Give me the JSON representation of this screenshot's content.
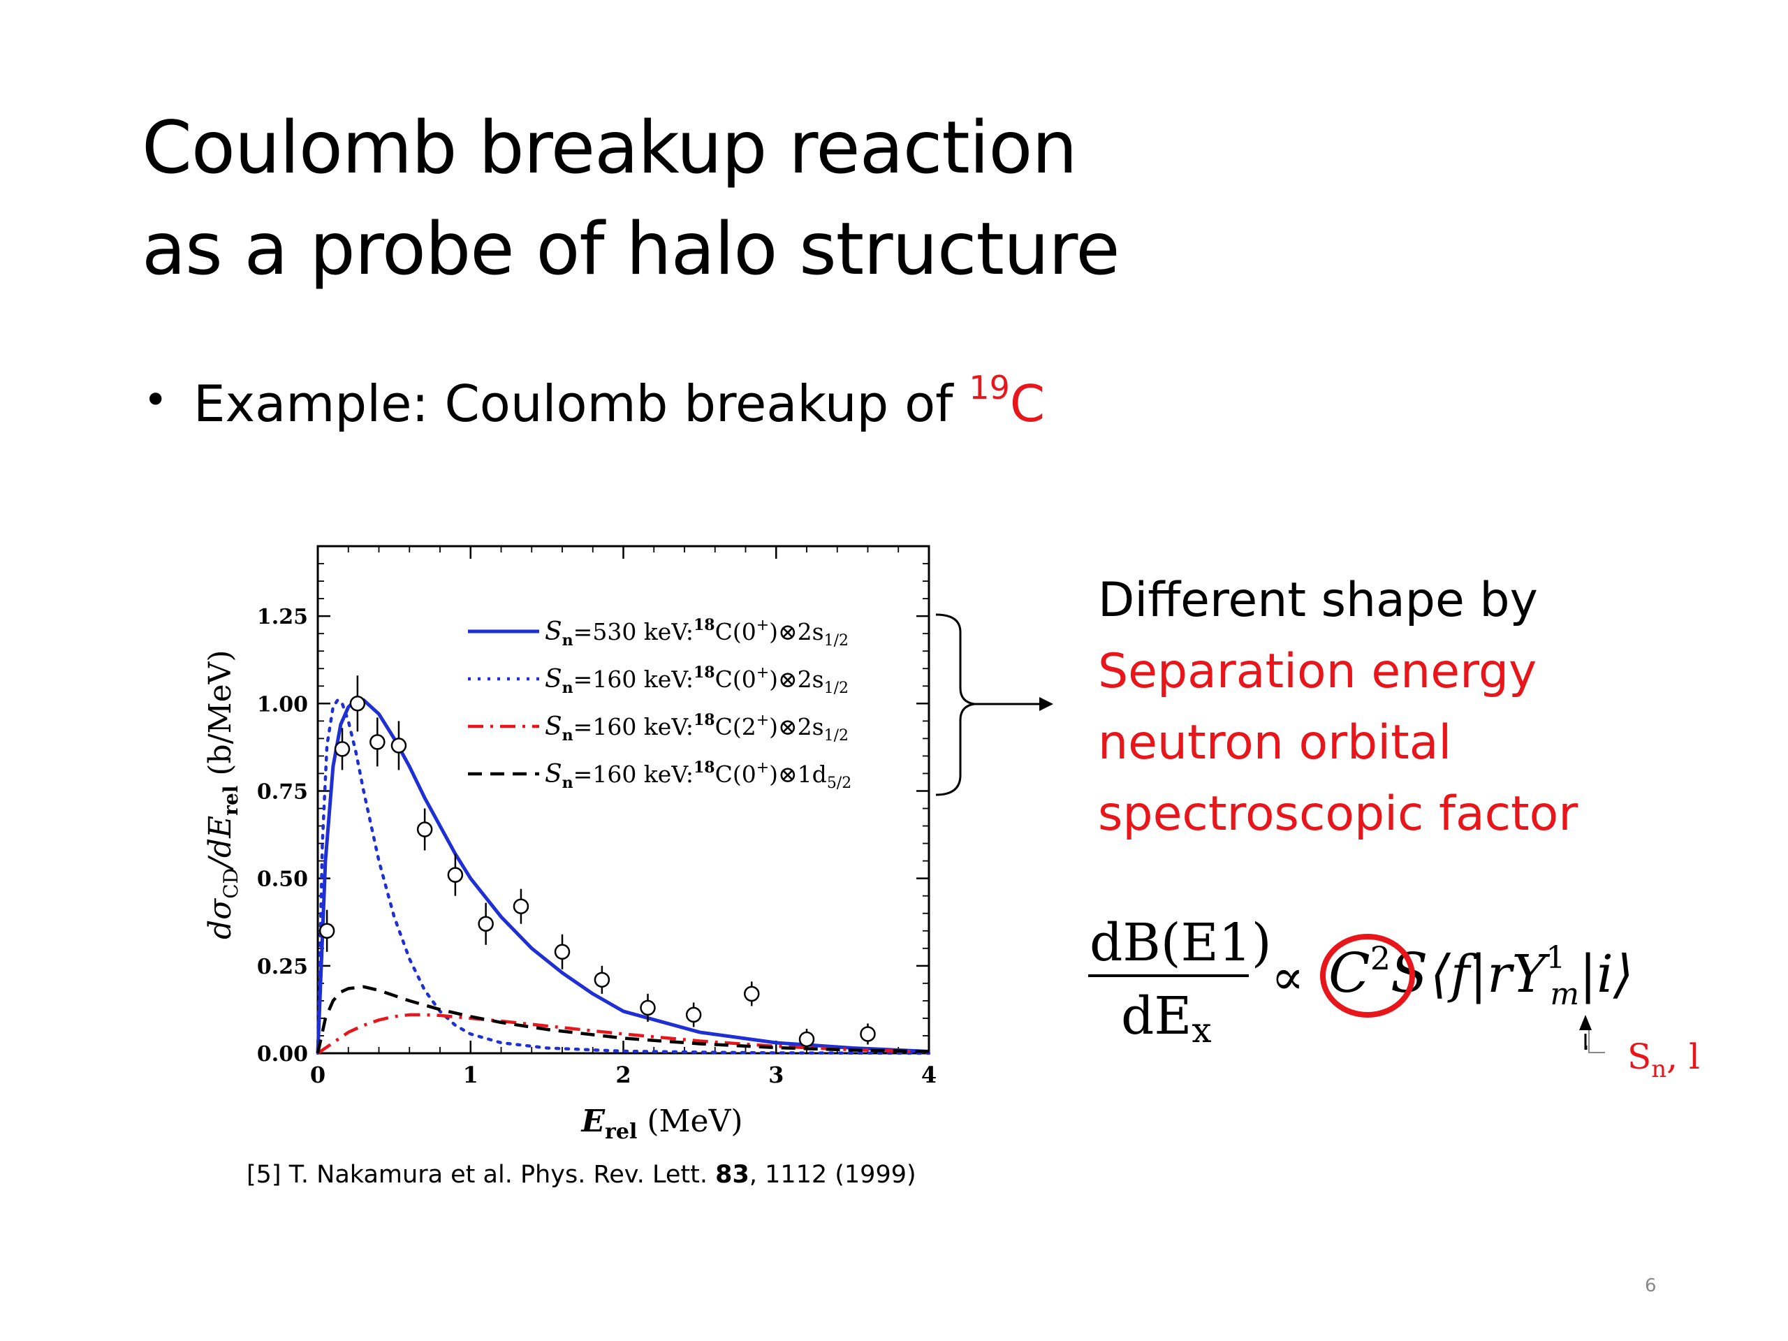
{
  "slide": {
    "title_line1": "Coulomb breakup reaction",
    "title_line2": "as a probe of halo structure",
    "bullet_prefix": "Example: Coulomb breakup of ",
    "bullet_isotope_mass": "19",
    "bullet_isotope_symbol": "C",
    "note_line1": "Different shape by",
    "note_line2": "Separation energy",
    "note_line3": "neutron orbital",
    "note_line4": "spectroscopic factor",
    "citation_prefix": "[5] T. Nakamura et al. Phys. Rev. Lett. ",
    "citation_volume": "83",
    "citation_suffix": ", 1112 (1999)",
    "page_number": "6",
    "equation": {
      "numerator": "dB(E1)",
      "denominator": "dE",
      "denominator_sub": "x",
      "proportional": "∝",
      "factor": "C",
      "factor_sup": "2",
      "factor_s": "S",
      "matrix_element": "⟨f|rY",
      "matrix_sup": "1",
      "matrix_sub": "m",
      "matrix_end": "|i⟩",
      "arrow_label_s": "S",
      "arrow_label_sub": "n",
      "arrow_label_rest": ", l"
    },
    "colors": {
      "accent_red": "#e8161b",
      "series_blue": "#1f2fd6",
      "series_red": "#e8161b",
      "series_black": "#000000"
    }
  },
  "chart_data": {
    "type": "line",
    "xlabel": "E",
    "xlabel_sub": "rel",
    "xlabel_unit": "(MeV)",
    "ylabel": "dσ",
    "ylabel_sub1": "CD",
    "ylabel_mid": "/dE",
    "ylabel_sub2": "rel",
    "ylabel_unit": "(b/MeV)",
    "xlim": [
      0,
      4
    ],
    "ylim": [
      0,
      1.45
    ],
    "xticks": [
      "0",
      "1",
      "2",
      "3",
      "4"
    ],
    "yticks": [
      "0.00",
      "0.25",
      "0.50",
      "0.75",
      "1.00",
      "1.25"
    ],
    "legend_position": "top-right",
    "series": [
      {
        "name": "S_n=530 keV: 18C(0+)⊗2s1/2",
        "label_s": "S",
        "label_n": "n",
        "label_e": "=530 keV:",
        "label_mass": "18",
        "label_core": "C(0",
        "label_cp": "+",
        "label_orb": ")⊗2s",
        "label_sub": "1/2",
        "style": "solid",
        "color": "#1f2fd6",
        "x": [
          0,
          0.05,
          0.1,
          0.15,
          0.2,
          0.25,
          0.3,
          0.4,
          0.5,
          0.6,
          0.7,
          0.8,
          0.9,
          1.0,
          1.2,
          1.4,
          1.6,
          1.8,
          2.0,
          2.5,
          3.0,
          3.5,
          4.0
        ],
        "y": [
          0,
          0.55,
          0.82,
          0.94,
          0.99,
          1.01,
          1.01,
          0.97,
          0.9,
          0.82,
          0.73,
          0.65,
          0.57,
          0.5,
          0.39,
          0.3,
          0.23,
          0.17,
          0.12,
          0.06,
          0.03,
          0.015,
          0.005
        ]
      },
      {
        "name": "S_n=160 keV: 18C(0+)⊗2s1/2",
        "label_s": "S",
        "label_n": "n",
        "label_e": "=160 keV:",
        "label_mass": "18",
        "label_core": "C(0",
        "label_cp": "+",
        "label_orb": ")⊗2s",
        "label_sub": "1/2",
        "style": "dotted",
        "color": "#1f2fd6",
        "x": [
          0,
          0.03,
          0.06,
          0.1,
          0.13,
          0.16,
          0.2,
          0.25,
          0.3,
          0.4,
          0.5,
          0.6,
          0.7,
          0.8,
          0.9,
          1.0,
          1.2,
          1.5,
          2.0,
          2.5,
          3.0,
          4.0
        ],
        "y": [
          0,
          0.6,
          0.88,
          0.99,
          1.01,
          1.0,
          0.95,
          0.86,
          0.75,
          0.55,
          0.39,
          0.27,
          0.18,
          0.12,
          0.08,
          0.055,
          0.03,
          0.015,
          0.006,
          0.003,
          0.001,
          0
        ]
      },
      {
        "name": "S_n=160 keV: 18C(2+)⊗2s1/2",
        "label_s": "S",
        "label_n": "n",
        "label_e": "=160 keV:",
        "label_mass": "18",
        "label_core": "C(2",
        "label_cp": "+",
        "label_orb": ")⊗2s",
        "label_sub": "1/2",
        "style": "dashdot",
        "color": "#e8161b",
        "x": [
          0,
          0.1,
          0.2,
          0.3,
          0.4,
          0.5,
          0.6,
          0.7,
          0.8,
          0.9,
          1.0,
          1.2,
          1.5,
          2.0,
          2.5,
          3.0,
          3.5,
          4.0
        ],
        "y": [
          0,
          0.03,
          0.06,
          0.08,
          0.095,
          0.105,
          0.11,
          0.11,
          0.108,
          0.104,
          0.1,
          0.092,
          0.078,
          0.055,
          0.035,
          0.02,
          0.01,
          0.004
        ]
      },
      {
        "name": "S_n=160 keV: 18C(0+)⊗1d5/2",
        "label_s": "S",
        "label_n": "n",
        "label_e": "=160 keV:",
        "label_mass": "18",
        "label_core": "C(0",
        "label_cp": "+",
        "label_orb": ")⊗1d",
        "label_sub": "5/2",
        "style": "dashed",
        "color": "#000000",
        "x": [
          0,
          0.05,
          0.1,
          0.15,
          0.2,
          0.3,
          0.4,
          0.5,
          0.6,
          0.8,
          1.0,
          1.2,
          1.5,
          2.0,
          2.5,
          3.0,
          3.5,
          4.0
        ],
        "y": [
          0,
          0.1,
          0.15,
          0.175,
          0.185,
          0.19,
          0.18,
          0.165,
          0.15,
          0.125,
          0.105,
          0.088,
          0.068,
          0.043,
          0.027,
          0.016,
          0.009,
          0.005
        ]
      }
    ],
    "data_points": {
      "name": "experiment",
      "x": [
        0.06,
        0.16,
        0.26,
        0.39,
        0.53,
        0.7,
        0.9,
        1.1,
        1.33,
        1.6,
        1.86,
        2.16,
        2.46,
        2.84,
        3.2,
        3.6
      ],
      "y": [
        0.35,
        0.87,
        1.0,
        0.89,
        0.88,
        0.64,
        0.51,
        0.37,
        0.42,
        0.29,
        0.21,
        0.13,
        0.11,
        0.17,
        0.04,
        0.055
      ],
      "err": [
        0.06,
        0.06,
        0.08,
        0.07,
        0.07,
        0.06,
        0.06,
        0.06,
        0.05,
        0.05,
        0.04,
        0.04,
        0.035,
        0.035,
        0.03,
        0.03
      ]
    }
  }
}
